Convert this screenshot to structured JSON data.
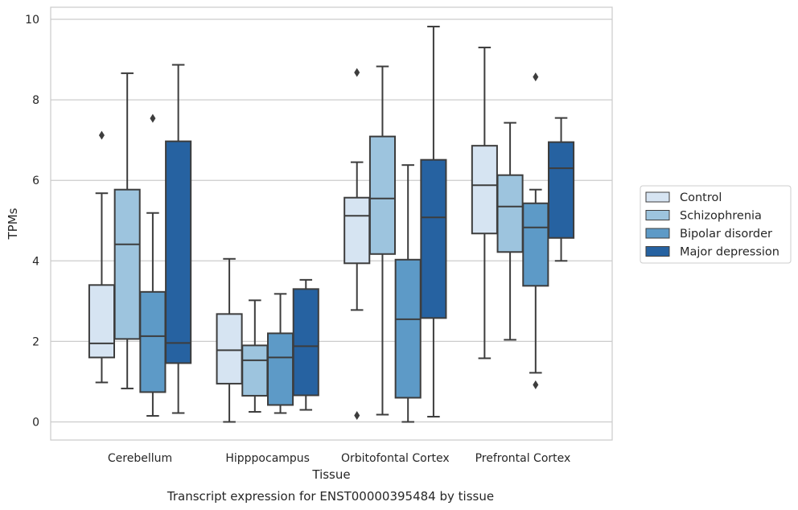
{
  "chart_data": {
    "type": "boxplot",
    "xlabel": "Tissue",
    "ylabel": "TPMs",
    "caption": "Transcript expression for ENST00000395484 by tissue",
    "ylim": [
      -0.45,
      10.3
    ],
    "yticks": [
      0,
      2,
      4,
      6,
      8,
      10
    ],
    "ytick_labels": [
      "0",
      "2",
      "4",
      "6",
      "8",
      "10"
    ],
    "grid": "horizontal",
    "legend_position": "right",
    "categories": [
      "Cerebellum",
      "Hipppocampus",
      "Orbitofontal Cortex",
      "Prefrontal Cortex"
    ],
    "series": [
      {
        "name": "Control",
        "color": "#d6e4f2",
        "boxes": [
          {
            "whislo": 0.98,
            "q1": 1.6,
            "med": 1.95,
            "q3": 3.4,
            "whishi": 5.68,
            "fliers": [
              7.12
            ]
          },
          {
            "whislo": 0.0,
            "q1": 0.95,
            "med": 1.78,
            "q3": 2.68,
            "whishi": 4.05,
            "fliers": []
          },
          {
            "whislo": 2.78,
            "q1": 3.94,
            "med": 5.12,
            "q3": 5.57,
            "whishi": 6.45,
            "fliers": [
              8.68,
              0.16
            ]
          },
          {
            "whislo": 1.58,
            "q1": 4.68,
            "med": 5.88,
            "q3": 6.86,
            "whishi": 9.3,
            "fliers": []
          }
        ]
      },
      {
        "name": "Schizophrenia",
        "color": "#9dc4de",
        "boxes": [
          {
            "whislo": 0.83,
            "q1": 2.06,
            "med": 4.41,
            "q3": 5.77,
            "whishi": 8.66,
            "fliers": []
          },
          {
            "whislo": 0.25,
            "q1": 0.65,
            "med": 1.53,
            "q3": 1.9,
            "whishi": 3.02,
            "fliers": []
          },
          {
            "whislo": 0.18,
            "q1": 4.17,
            "med": 5.55,
            "q3": 7.09,
            "whishi": 8.83,
            "fliers": []
          },
          {
            "whislo": 2.04,
            "q1": 4.22,
            "med": 5.35,
            "q3": 6.13,
            "whishi": 7.43,
            "fliers": []
          }
        ]
      },
      {
        "name": "Bipolar disorder",
        "color": "#5d9ac7",
        "boxes": [
          {
            "whislo": 0.15,
            "q1": 0.74,
            "med": 2.13,
            "q3": 3.23,
            "whishi": 5.19,
            "fliers": [
              7.54
            ]
          },
          {
            "whislo": 0.22,
            "q1": 0.42,
            "med": 1.6,
            "q3": 2.2,
            "whishi": 3.18,
            "fliers": []
          },
          {
            "whislo": 0.0,
            "q1": 0.6,
            "med": 2.55,
            "q3": 4.03,
            "whishi": 6.38,
            "fliers": []
          },
          {
            "whislo": 1.22,
            "q1": 3.38,
            "med": 4.83,
            "q3": 5.43,
            "whishi": 5.77,
            "fliers": [
              8.57,
              0.92
            ]
          }
        ]
      },
      {
        "name": "Major depression",
        "color": "#2662a1",
        "boxes": [
          {
            "whislo": 0.22,
            "q1": 1.46,
            "med": 1.96,
            "q3": 6.97,
            "whishi": 8.87,
            "fliers": []
          },
          {
            "whislo": 0.3,
            "q1": 0.66,
            "med": 1.88,
            "q3": 3.3,
            "whishi": 3.53,
            "fliers": []
          },
          {
            "whislo": 0.13,
            "q1": 2.58,
            "med": 5.08,
            "q3": 6.51,
            "whishi": 9.82,
            "fliers": []
          },
          {
            "whislo": 4.0,
            "q1": 4.57,
            "med": 6.3,
            "q3": 6.95,
            "whishi": 7.55,
            "fliers": []
          }
        ]
      }
    ]
  }
}
